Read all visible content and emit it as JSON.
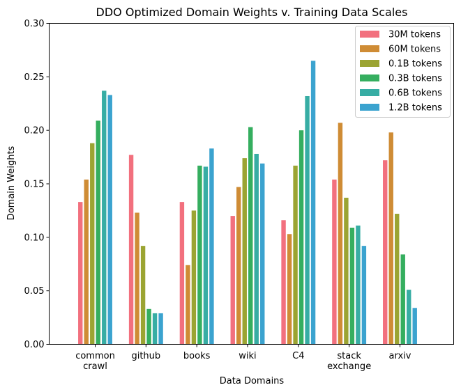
{
  "chart_data": {
    "type": "bar",
    "title": "DDO Optimized Domain Weights v. Training Data Scales",
    "xlabel": "Data Domains",
    "ylabel": "Domain Weights",
    "ylim": [
      0,
      0.3
    ],
    "yticks": [
      "0.00",
      "0.05",
      "0.10",
      "0.15",
      "0.20",
      "0.25",
      "0.30"
    ],
    "ytick_values": [
      0,
      0.05,
      0.1,
      0.15,
      0.2,
      0.25,
      0.3
    ],
    "grid": false,
    "legend_position": "top-right",
    "categories": [
      [
        "common",
        "crawl"
      ],
      [
        "github"
      ],
      [
        "books"
      ],
      [
        "wiki"
      ],
      [
        "C4"
      ],
      [
        "stack",
        "exchange"
      ],
      [
        "arxiv"
      ]
    ],
    "series": [
      {
        "name": "30M tokens",
        "color": "#f2707e",
        "values": [
          0.133,
          0.177,
          0.133,
          0.12,
          0.116,
          0.154,
          0.172
        ]
      },
      {
        "name": "60M tokens",
        "color": "#cf8c35",
        "values": [
          0.154,
          0.123,
          0.074,
          0.147,
          0.103,
          0.207,
          0.198
        ]
      },
      {
        "name": "0.1B tokens",
        "color": "#9ba432",
        "values": [
          0.188,
          0.092,
          0.125,
          0.174,
          0.167,
          0.137,
          0.122
        ]
      },
      {
        "name": "0.3B tokens",
        "color": "#35ae5f",
        "values": [
          0.209,
          0.033,
          0.167,
          0.203,
          0.2,
          0.109,
          0.084
        ]
      },
      {
        "name": "0.6B tokens",
        "color": "#37ada4",
        "values": [
          0.237,
          0.029,
          0.166,
          0.178,
          0.232,
          0.111,
          0.051
        ]
      },
      {
        "name": "1.2B tokens",
        "color": "#3ba3cf",
        "values": [
          0.233,
          0.029,
          0.183,
          0.169,
          0.265,
          0.092,
          0.034
        ]
      }
    ]
  }
}
